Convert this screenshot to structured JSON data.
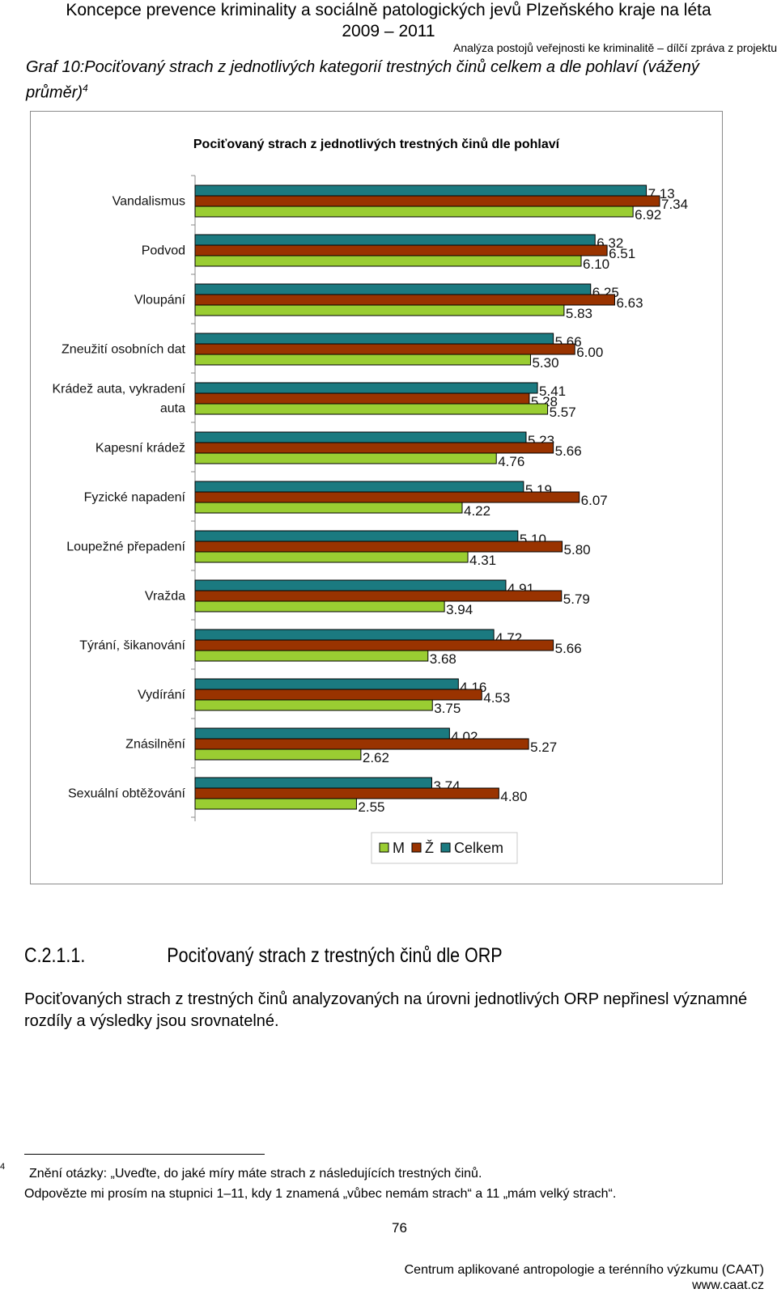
{
  "header": {
    "title_line1": "Koncepce prevence kriminality a sociálně patologických jevů Plzeňského kraje na léta",
    "title_line2": "2009 – 2011",
    "subtitle": "Analýza postojů veřejnosti ke kriminalitě – dílčí zpráva z projektu"
  },
  "graf_caption": {
    "text": "Graf 10:Pociťovaný strach z jednotlivých kategorií trestných činů celkem a dle pohlaví (vážený průměr)",
    "footnote_ref": "4"
  },
  "colors": {
    "M": "#9ACD32",
    "Z": "#993300",
    "Celkem": "#1B7A80",
    "frame": "#8a8a8a"
  },
  "chart_data": {
    "type": "bar",
    "orientation": "horizontal",
    "title": "Pociťovaný strach z jednotlivých trestných činů dle pohlaví",
    "categories": [
      "Vandalismus",
      "Podvod",
      "Vloupání",
      "Zneužití osobních dat",
      "Krádež auta, vykradení auta",
      "Kapesní krádež",
      "Fyzické napadení",
      "Loupežné přepadení",
      "Vražda",
      "Týrání, šikanování",
      "Vydírání",
      "Znásilnění",
      "Sexuální obtěžování"
    ],
    "series": [
      {
        "name": "Celkem",
        "values": [
          7.13,
          6.32,
          6.25,
          5.66,
          5.41,
          5.23,
          5.19,
          5.1,
          4.91,
          4.72,
          4.16,
          4.02,
          3.74
        ]
      },
      {
        "name": "Ž",
        "values": [
          7.34,
          6.51,
          6.63,
          6.0,
          5.28,
          5.66,
          6.07,
          5.8,
          5.79,
          5.66,
          4.53,
          5.27,
          4.8
        ]
      },
      {
        "name": "M",
        "values": [
          6.92,
          6.1,
          5.83,
          5.3,
          5.57,
          4.76,
          4.22,
          4.31,
          3.94,
          3.68,
          3.75,
          2.62,
          2.55
        ]
      }
    ],
    "legend": [
      "M",
      "Ž",
      "Celkem"
    ],
    "legend_position": "bottom",
    "xlim": [
      0,
      7.6
    ],
    "grid": false
  },
  "section": {
    "number": "C.2.1.1.",
    "title": "Pociťovaný strach z trestných činů dle ORP"
  },
  "paragraph": "Pociťovaných strach z trestných činů analyzovaných na úrovni jednotlivých ORP nepřinesl významné rozdíly a výsledky jsou srovnatelné.",
  "footnote": {
    "mark": "4",
    "line1": "Znění otázky: „Uveďte, do jaké míry máte strach z následujících trestných činů.",
    "line2": "Odpovězte mi prosím na stupnici 1–11, kdy 1 znamená „vůbec nemám strach“ a 11 „mám velký strach“."
  },
  "page_number": "76",
  "footer": {
    "line1": "Centrum aplikované antropologie a terénního výzkumu (CAAT)",
    "line2": "www.caat.cz"
  }
}
